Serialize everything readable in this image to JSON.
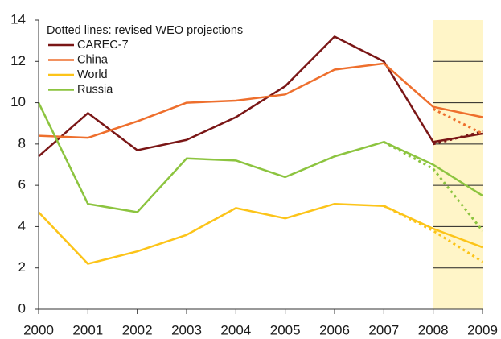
{
  "chart_data": {
    "type": "line",
    "legend_title": "Dotted lines: revised WEO projections",
    "x": [
      2000,
      2001,
      2002,
      2003,
      2004,
      2005,
      2006,
      2007,
      2008,
      2009
    ],
    "xlim": [
      2000,
      2009
    ],
    "xticks": [
      2000,
      2001,
      2002,
      2003,
      2004,
      2005,
      2006,
      2007,
      2008,
      2009
    ],
    "ylim": [
      0,
      14
    ],
    "yticks": [
      0,
      2,
      4,
      6,
      8,
      10,
      12,
      14
    ],
    "highlight": [
      2008,
      2009
    ],
    "highlight_color": "#fff5c8",
    "series": [
      {
        "name": "CAREC-7",
        "color": "#7a1616",
        "values": [
          7.4,
          9.5,
          7.7,
          8.2,
          9.3,
          10.8,
          13.2,
          12.0,
          8.1,
          8.5
        ],
        "revised": [
          null,
          null,
          null,
          null,
          null,
          null,
          null,
          null,
          8.0,
          8.6
        ]
      },
      {
        "name": "China",
        "color": "#ee6f2d",
        "values": [
          8.4,
          8.3,
          9.1,
          10.0,
          10.1,
          10.4,
          11.6,
          11.9,
          9.8,
          9.3
        ],
        "revised": [
          null,
          null,
          null,
          null,
          null,
          null,
          null,
          null,
          9.7,
          8.5
        ]
      },
      {
        "name": "World",
        "color": "#fcc419",
        "values": [
          4.7,
          2.2,
          2.8,
          3.6,
          4.9,
          4.4,
          5.1,
          5.0,
          3.9,
          3.0
        ],
        "revised": [
          null,
          null,
          null,
          null,
          null,
          null,
          null,
          5.0,
          3.8,
          2.3
        ]
      },
      {
        "name": "Russia",
        "color": "#8cc43f",
        "values": [
          10.0,
          5.1,
          4.7,
          7.3,
          7.2,
          6.4,
          7.4,
          8.1,
          7.0,
          5.5
        ],
        "revised": [
          null,
          null,
          null,
          null,
          null,
          null,
          null,
          8.1,
          6.8,
          3.8
        ]
      }
    ]
  }
}
